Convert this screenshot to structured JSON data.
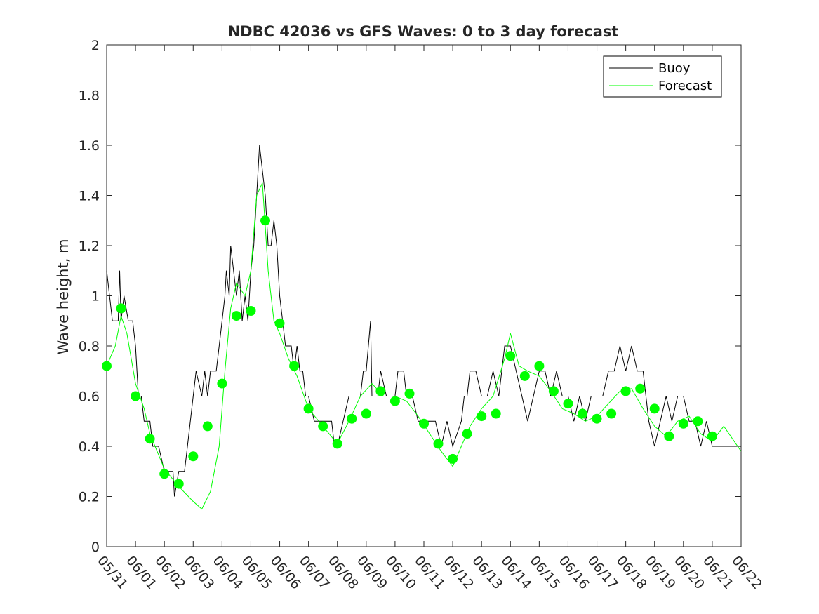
{
  "chart_data": {
    "type": "line",
    "title": "NDBC 42036 vs GFS Waves: 0 to 3 day forecast",
    "xlabel": "",
    "ylabel": "Wave height, m",
    "ylim": [
      0,
      2
    ],
    "y_ticks": [
      "0",
      "0.2",
      "0.4",
      "0.6",
      "0.8",
      "1",
      "1.2",
      "1.4",
      "1.6",
      "1.8",
      "2"
    ],
    "x_ticks": [
      "05/31",
      "06/01",
      "06/02",
      "06/03",
      "06/04",
      "06/05",
      "06/06",
      "06/07",
      "06/08",
      "06/09",
      "06/10",
      "06/11",
      "06/12",
      "06/13",
      "06/14",
      "06/15",
      "06/16",
      "06/17",
      "06/18",
      "06/19",
      "06/20",
      "06/21",
      "06/22"
    ],
    "x_unit": "days since 05/31",
    "legend": {
      "position": "top-right",
      "entries": [
        {
          "label": "Buoy",
          "color": "#000000"
        },
        {
          "label": "Forecast",
          "color": "#00ff00"
        }
      ]
    },
    "colors": {
      "buoy": "#000000",
      "forecast": "#00ff00",
      "markers": "#00ff00"
    },
    "series": [
      {
        "name": "Buoy",
        "points": [
          [
            0,
            1.1
          ],
          [
            0.1,
            1.0
          ],
          [
            0.2,
            0.9
          ],
          [
            0.4,
            0.9
          ],
          [
            0.45,
            1.1
          ],
          [
            0.5,
            0.9
          ],
          [
            0.6,
            1.0
          ],
          [
            0.75,
            0.9
          ],
          [
            0.9,
            0.9
          ],
          [
            1.0,
            0.8
          ],
          [
            1.1,
            0.6
          ],
          [
            1.2,
            0.6
          ],
          [
            1.3,
            0.5
          ],
          [
            1.5,
            0.5
          ],
          [
            1.6,
            0.4
          ],
          [
            1.8,
            0.4
          ],
          [
            2.0,
            0.3
          ],
          [
            2.3,
            0.3
          ],
          [
            2.35,
            0.2
          ],
          [
            2.5,
            0.3
          ],
          [
            2.7,
            0.3
          ],
          [
            2.8,
            0.4
          ],
          [
            2.9,
            0.5
          ],
          [
            3.0,
            0.6
          ],
          [
            3.1,
            0.7
          ],
          [
            3.3,
            0.6
          ],
          [
            3.4,
            0.7
          ],
          [
            3.5,
            0.6
          ],
          [
            3.6,
            0.7
          ],
          [
            3.8,
            0.7
          ],
          [
            3.9,
            0.8
          ],
          [
            4.0,
            0.9
          ],
          [
            4.1,
            1.0
          ],
          [
            4.15,
            1.1
          ],
          [
            4.25,
            1.0
          ],
          [
            4.3,
            1.2
          ],
          [
            4.4,
            1.1
          ],
          [
            4.5,
            1.0
          ],
          [
            4.6,
            1.1
          ],
          [
            4.7,
            0.9
          ],
          [
            4.8,
            1.0
          ],
          [
            4.9,
            0.9
          ],
          [
            5.0,
            1.1
          ],
          [
            5.1,
            1.2
          ],
          [
            5.2,
            1.4
          ],
          [
            5.3,
            1.6
          ],
          [
            5.4,
            1.5
          ],
          [
            5.5,
            1.4
          ],
          [
            5.6,
            1.2
          ],
          [
            5.7,
            1.2
          ],
          [
            5.8,
            1.3
          ],
          [
            5.9,
            1.2
          ],
          [
            6.0,
            1.0
          ],
          [
            6.1,
            0.9
          ],
          [
            6.2,
            0.8
          ],
          [
            6.4,
            0.8
          ],
          [
            6.5,
            0.7
          ],
          [
            6.6,
            0.8
          ],
          [
            6.7,
            0.7
          ],
          [
            6.8,
            0.7
          ],
          [
            6.9,
            0.6
          ],
          [
            7.0,
            0.6
          ],
          [
            7.2,
            0.5
          ],
          [
            7.5,
            0.5
          ],
          [
            7.8,
            0.5
          ],
          [
            7.9,
            0.4
          ],
          [
            8.0,
            0.4
          ],
          [
            8.2,
            0.5
          ],
          [
            8.4,
            0.6
          ],
          [
            8.6,
            0.6
          ],
          [
            8.8,
            0.6
          ],
          [
            8.9,
            0.7
          ],
          [
            9.0,
            0.7
          ],
          [
            9.15,
            0.9
          ],
          [
            9.2,
            0.6
          ],
          [
            9.4,
            0.6
          ],
          [
            9.5,
            0.7
          ],
          [
            9.7,
            0.6
          ],
          [
            9.9,
            0.6
          ],
          [
            10.0,
            0.6
          ],
          [
            10.1,
            0.7
          ],
          [
            10.3,
            0.7
          ],
          [
            10.4,
            0.6
          ],
          [
            10.6,
            0.6
          ],
          [
            10.8,
            0.5
          ],
          [
            11.0,
            0.5
          ],
          [
            11.2,
            0.5
          ],
          [
            11.4,
            0.5
          ],
          [
            11.6,
            0.4
          ],
          [
            11.8,
            0.5
          ],
          [
            12.0,
            0.4
          ],
          [
            12.3,
            0.5
          ],
          [
            12.4,
            0.6
          ],
          [
            12.5,
            0.6
          ],
          [
            12.6,
            0.7
          ],
          [
            12.8,
            0.7
          ],
          [
            13.0,
            0.6
          ],
          [
            13.2,
            0.6
          ],
          [
            13.4,
            0.7
          ],
          [
            13.6,
            0.6
          ],
          [
            13.8,
            0.8
          ],
          [
            14.0,
            0.8
          ],
          [
            14.2,
            0.7
          ],
          [
            14.4,
            0.6
          ],
          [
            14.6,
            0.5
          ],
          [
            14.8,
            0.6
          ],
          [
            15.0,
            0.7
          ],
          [
            15.2,
            0.7
          ],
          [
            15.4,
            0.6
          ],
          [
            15.6,
            0.7
          ],
          [
            15.8,
            0.6
          ],
          [
            16.0,
            0.6
          ],
          [
            16.2,
            0.5
          ],
          [
            16.4,
            0.6
          ],
          [
            16.6,
            0.5
          ],
          [
            16.8,
            0.6
          ],
          [
            17.0,
            0.6
          ],
          [
            17.2,
            0.6
          ],
          [
            17.4,
            0.7
          ],
          [
            17.6,
            0.7
          ],
          [
            17.8,
            0.8
          ],
          [
            18.0,
            0.7
          ],
          [
            18.2,
            0.8
          ],
          [
            18.4,
            0.7
          ],
          [
            18.6,
            0.7
          ],
          [
            18.8,
            0.5
          ],
          [
            19.0,
            0.4
          ],
          [
            19.2,
            0.5
          ],
          [
            19.4,
            0.6
          ],
          [
            19.6,
            0.5
          ],
          [
            19.8,
            0.6
          ],
          [
            20.0,
            0.6
          ],
          [
            20.2,
            0.5
          ],
          [
            20.4,
            0.5
          ],
          [
            20.6,
            0.4
          ],
          [
            20.8,
            0.5
          ],
          [
            21.0,
            0.4
          ],
          [
            21.2,
            0.4
          ],
          [
            21.4,
            0.4
          ],
          [
            21.6,
            0.4
          ],
          [
            21.8,
            0.4
          ],
          [
            22.0,
            0.4
          ]
        ]
      },
      {
        "name": "Forecast",
        "points": [
          [
            0,
            0.72
          ],
          [
            0.3,
            0.8
          ],
          [
            0.5,
            0.92
          ],
          [
            0.7,
            0.85
          ],
          [
            1.0,
            0.65
          ],
          [
            1.3,
            0.55
          ],
          [
            1.5,
            0.45
          ],
          [
            2.0,
            0.31
          ],
          [
            2.5,
            0.24
          ],
          [
            3.0,
            0.18
          ],
          [
            3.3,
            0.15
          ],
          [
            3.6,
            0.22
          ],
          [
            3.9,
            0.4
          ],
          [
            4.1,
            0.7
          ],
          [
            4.3,
            0.95
          ],
          [
            4.5,
            1.05
          ],
          [
            4.8,
            1.0
          ],
          [
            5.0,
            1.1
          ],
          [
            5.2,
            1.4
          ],
          [
            5.4,
            1.45
          ],
          [
            5.6,
            1.1
          ],
          [
            5.8,
            0.9
          ],
          [
            6.0,
            0.85
          ],
          [
            6.3,
            0.75
          ],
          [
            6.6,
            0.68
          ],
          [
            7.0,
            0.55
          ],
          [
            7.5,
            0.48
          ],
          [
            8.0,
            0.41
          ],
          [
            8.4,
            0.5
          ],
          [
            8.8,
            0.6
          ],
          [
            9.2,
            0.65
          ],
          [
            9.6,
            0.6
          ],
          [
            10.0,
            0.6
          ],
          [
            10.4,
            0.58
          ],
          [
            10.8,
            0.52
          ],
          [
            11.2,
            0.45
          ],
          [
            11.6,
            0.38
          ],
          [
            12.0,
            0.32
          ],
          [
            12.3,
            0.4
          ],
          [
            12.6,
            0.48
          ],
          [
            13.0,
            0.55
          ],
          [
            13.4,
            0.6
          ],
          [
            13.8,
            0.75
          ],
          [
            14.0,
            0.85
          ],
          [
            14.3,
            0.72
          ],
          [
            14.6,
            0.7
          ],
          [
            15.0,
            0.68
          ],
          [
            15.4,
            0.62
          ],
          [
            15.8,
            0.55
          ],
          [
            16.2,
            0.53
          ],
          [
            16.6,
            0.5
          ],
          [
            17.0,
            0.52
          ],
          [
            17.4,
            0.57
          ],
          [
            17.8,
            0.62
          ],
          [
            18.2,
            0.63
          ],
          [
            18.6,
            0.55
          ],
          [
            19.0,
            0.48
          ],
          [
            19.4,
            0.44
          ],
          [
            19.8,
            0.5
          ],
          [
            20.2,
            0.52
          ],
          [
            20.6,
            0.45
          ],
          [
            21.0,
            0.42
          ],
          [
            21.4,
            0.48
          ],
          [
            22.0,
            0.38
          ]
        ]
      }
    ],
    "forecast_markers": [
      [
        0,
        0.72
      ],
      [
        0.5,
        0.95
      ],
      [
        1.0,
        0.6
      ],
      [
        1.5,
        0.43
      ],
      [
        2.0,
        0.29
      ],
      [
        2.5,
        0.25
      ],
      [
        3.0,
        0.36
      ],
      [
        3.5,
        0.48
      ],
      [
        4.0,
        0.65
      ],
      [
        4.5,
        0.92
      ],
      [
        5.0,
        0.94
      ],
      [
        5.5,
        1.3
      ],
      [
        6.0,
        0.89
      ],
      [
        6.5,
        0.72
      ],
      [
        7.0,
        0.55
      ],
      [
        7.5,
        0.48
      ],
      [
        8.0,
        0.41
      ],
      [
        8.5,
        0.51
      ],
      [
        9.0,
        0.53
      ],
      [
        9.5,
        0.62
      ],
      [
        10.0,
        0.58
      ],
      [
        10.5,
        0.61
      ],
      [
        11.0,
        0.49
      ],
      [
        11.5,
        0.41
      ],
      [
        12.0,
        0.35
      ],
      [
        12.5,
        0.45
      ],
      [
        13.0,
        0.52
      ],
      [
        13.5,
        0.53
      ],
      [
        14.0,
        0.76
      ],
      [
        14.5,
        0.68
      ],
      [
        15.0,
        0.72
      ],
      [
        15.5,
        0.62
      ],
      [
        16.0,
        0.57
      ],
      [
        16.5,
        0.53
      ],
      [
        17.0,
        0.51
      ],
      [
        17.5,
        0.53
      ],
      [
        18.0,
        0.62
      ],
      [
        18.5,
        0.63
      ],
      [
        19.0,
        0.55
      ],
      [
        19.5,
        0.44
      ],
      [
        20.0,
        0.49
      ],
      [
        20.5,
        0.5
      ],
      [
        21.0,
        0.44
      ]
    ]
  }
}
